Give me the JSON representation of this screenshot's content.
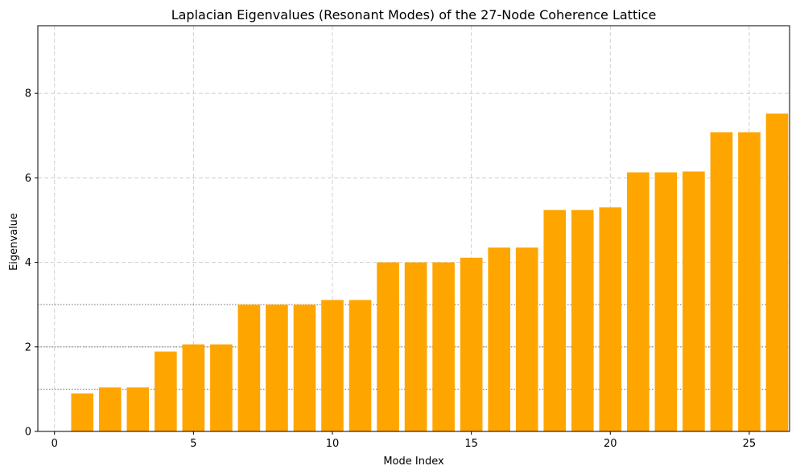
{
  "chart_data": {
    "type": "bar",
    "title": "Laplacian Eigenvalues (Resonant Modes) of the 27-Node Coherence Lattice",
    "xlabel": "Mode Index",
    "ylabel": "Eigenvalue",
    "x": [
      1,
      2,
      3,
      4,
      5,
      6,
      7,
      8,
      9,
      10,
      11,
      12,
      13,
      14,
      15,
      16,
      17,
      18,
      19,
      20,
      21,
      22,
      23,
      24,
      25,
      26
    ],
    "values": [
      0.9,
      1.04,
      1.04,
      1.89,
      2.06,
      2.06,
      3.0,
      3.0,
      3.0,
      3.11,
      3.11,
      4.0,
      4.0,
      4.0,
      4.11,
      4.35,
      4.35,
      5.24,
      5.24,
      5.3,
      6.13,
      6.13,
      6.15,
      7.08,
      7.08,
      7.52
    ],
    "bar_color": "#FFA500",
    "xlim": [
      -0.6,
      26.45
    ],
    "ylim": [
      0,
      9.6
    ],
    "xticks": [
      0,
      5,
      10,
      15,
      20,
      25
    ],
    "yticks": [
      0,
      2,
      4,
      6,
      8
    ],
    "grid": true,
    "grid_color": "#cccccc",
    "reference_lines": [
      1,
      2,
      3
    ],
    "reference_line_color": "#808080"
  }
}
